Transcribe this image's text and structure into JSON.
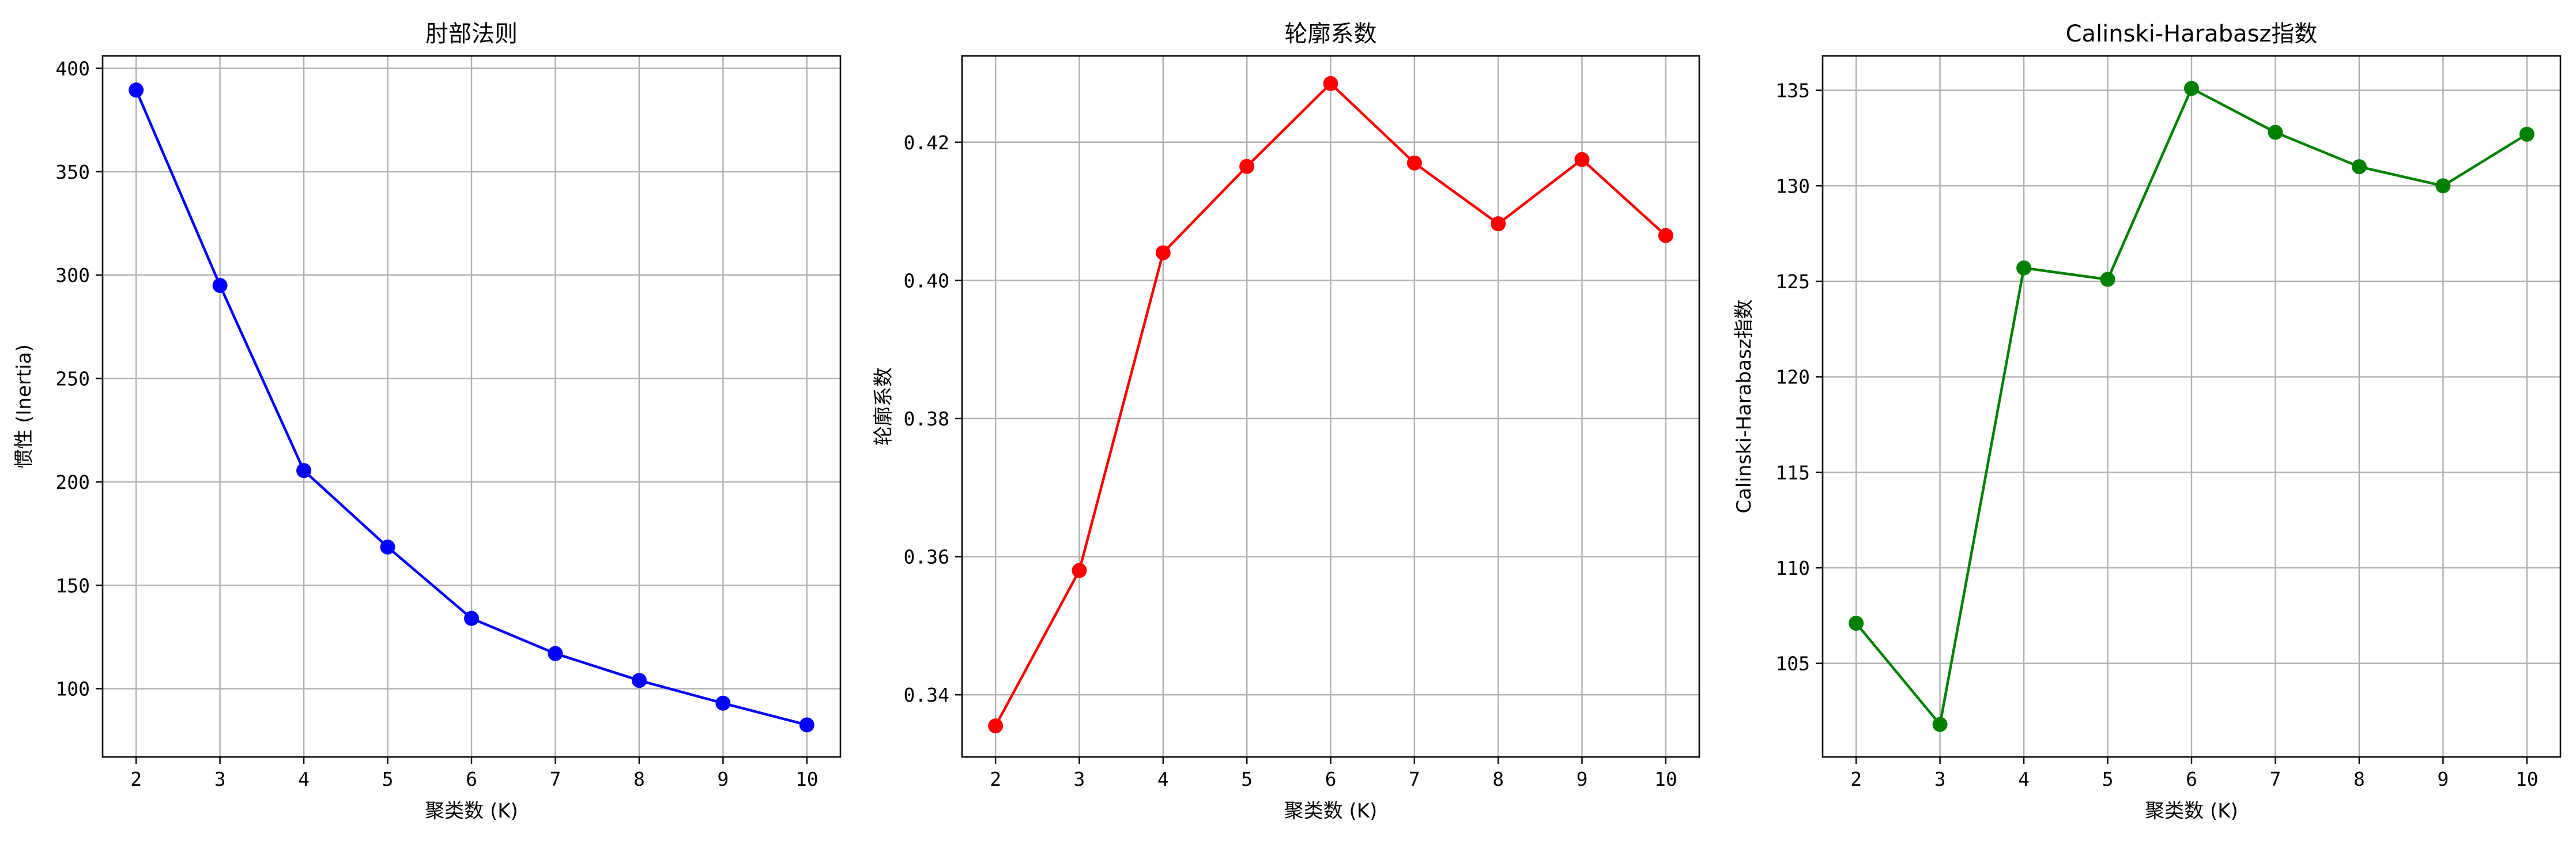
{
  "chart_data": [
    {
      "type": "line",
      "title": "肘部法则",
      "xlabel": "聚类数 (K)",
      "ylabel": "惯性 (Inertia)",
      "color": "#0000ff",
      "marker": "circle",
      "grid": true,
      "xlim": [
        1.6,
        10.4
      ],
      "ylim": [
        67,
        406
      ],
      "x": [
        2,
        3,
        4,
        5,
        6,
        7,
        8,
        9,
        10
      ],
      "y": [
        389.5,
        295.0,
        205.5,
        168.5,
        134.0,
        117.0,
        104.0,
        93.0,
        82.5
      ],
      "xticks": [
        2,
        3,
        4,
        5,
        6,
        7,
        8,
        9,
        10
      ],
      "yticks": [
        100,
        150,
        200,
        250,
        300,
        350,
        400
      ],
      "ytick_labels": [
        "100",
        "150",
        "200",
        "250",
        "300",
        "350",
        "400"
      ]
    },
    {
      "type": "line",
      "title": "轮廓系数",
      "xlabel": "聚类数 (K)",
      "ylabel": "轮廓系数",
      "color": "#ff0000",
      "marker": "circle",
      "grid": true,
      "xlim": [
        1.6,
        10.4
      ],
      "ylim": [
        0.331,
        0.4325
      ],
      "x": [
        2,
        3,
        4,
        5,
        6,
        7,
        8,
        9,
        10
      ],
      "y": [
        0.3355,
        0.358,
        0.404,
        0.4165,
        0.4285,
        0.417,
        0.4082,
        0.4175,
        0.4065
      ],
      "xticks": [
        2,
        3,
        4,
        5,
        6,
        7,
        8,
        9,
        10
      ],
      "yticks": [
        0.34,
        0.36,
        0.38,
        0.4,
        0.42
      ],
      "ytick_labels": [
        "0.34",
        "0.36",
        "0.38",
        "0.40",
        "0.42"
      ]
    },
    {
      "type": "line",
      "title": "Calinski-Harabasz指数",
      "xlabel": "聚类数 (K)",
      "ylabel": "Calinski-Harabasz指数",
      "color": "#008000",
      "marker": "circle",
      "grid": true,
      "xlim": [
        1.6,
        10.4
      ],
      "ylim": [
        100.1,
        136.8
      ],
      "x": [
        2,
        3,
        4,
        5,
        6,
        7,
        8,
        9,
        10
      ],
      "y": [
        107.1,
        101.8,
        125.7,
        125.1,
        135.1,
        132.8,
        131.0,
        130.0,
        132.7
      ],
      "xticks": [
        2,
        3,
        4,
        5,
        6,
        7,
        8,
        9,
        10
      ],
      "yticks": [
        105,
        110,
        115,
        120,
        125,
        130,
        135
      ],
      "ytick_labels": [
        "105",
        "110",
        "115",
        "120",
        "125",
        "130",
        "135"
      ]
    }
  ]
}
